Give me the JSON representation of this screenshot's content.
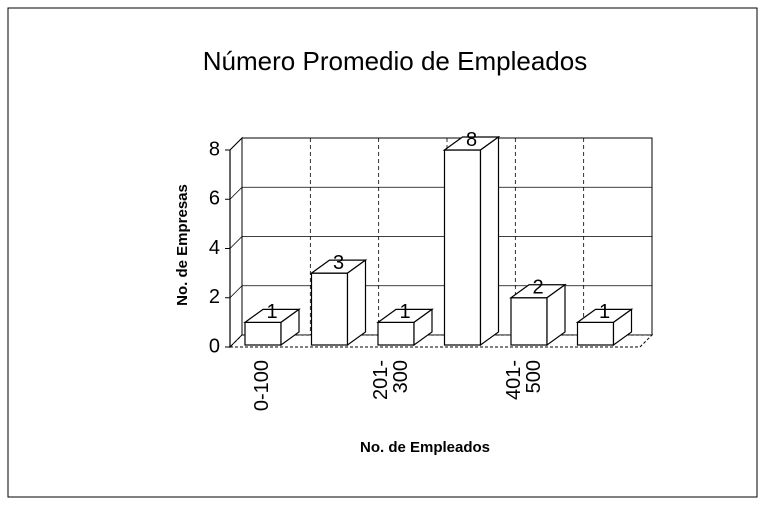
{
  "chart_data": {
    "type": "bar",
    "title": "Número Promedio de Empleados",
    "categories": [
      "0-100",
      null,
      "201- 300",
      null,
      "401- 500",
      null
    ],
    "values": [
      1,
      3,
      1,
      8,
      2,
      1
    ],
    "color": "#ffffff",
    "ylim": [
      0,
      8
    ],
    "yticks": [
      0,
      2,
      4,
      6,
      8
    ],
    "grid": true,
    "xlabel": "No. de Empleados",
    "ylabel": "No. de Empresas"
  }
}
